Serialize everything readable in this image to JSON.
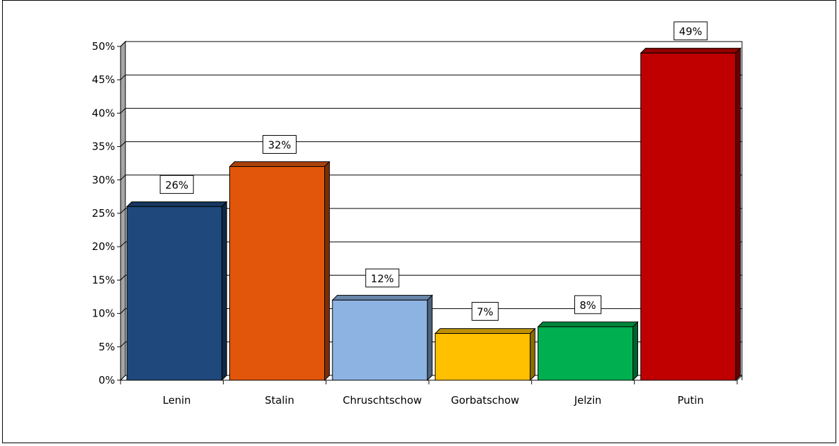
{
  "chart_data": {
    "type": "bar",
    "title": "",
    "xlabel": "",
    "ylabel": "",
    "categories": [
      "Lenin",
      "Stalin",
      "Chruschtschow",
      "Gorbatschow",
      "Jelzin",
      "Putin"
    ],
    "values": [
      26,
      32,
      12,
      7,
      8,
      49
    ],
    "data_labels": [
      "26%",
      "32%",
      "12%",
      "7%",
      "8%",
      "49%"
    ],
    "colors": [
      "#1f497d",
      "#e2560b",
      "#8db3e2",
      "#ffc000",
      "#00b050",
      "#c00000"
    ],
    "ylim": [
      0,
      50
    ],
    "y_ticks": [
      0,
      5,
      10,
      15,
      20,
      25,
      30,
      35,
      40,
      45,
      50
    ],
    "y_tick_labels": [
      "0%",
      "5%",
      "10%",
      "15%",
      "20%",
      "25%",
      "30%",
      "35%",
      "40%",
      "45%",
      "50%"
    ],
    "grid": true,
    "style": "3d-bar",
    "legend": "none"
  }
}
